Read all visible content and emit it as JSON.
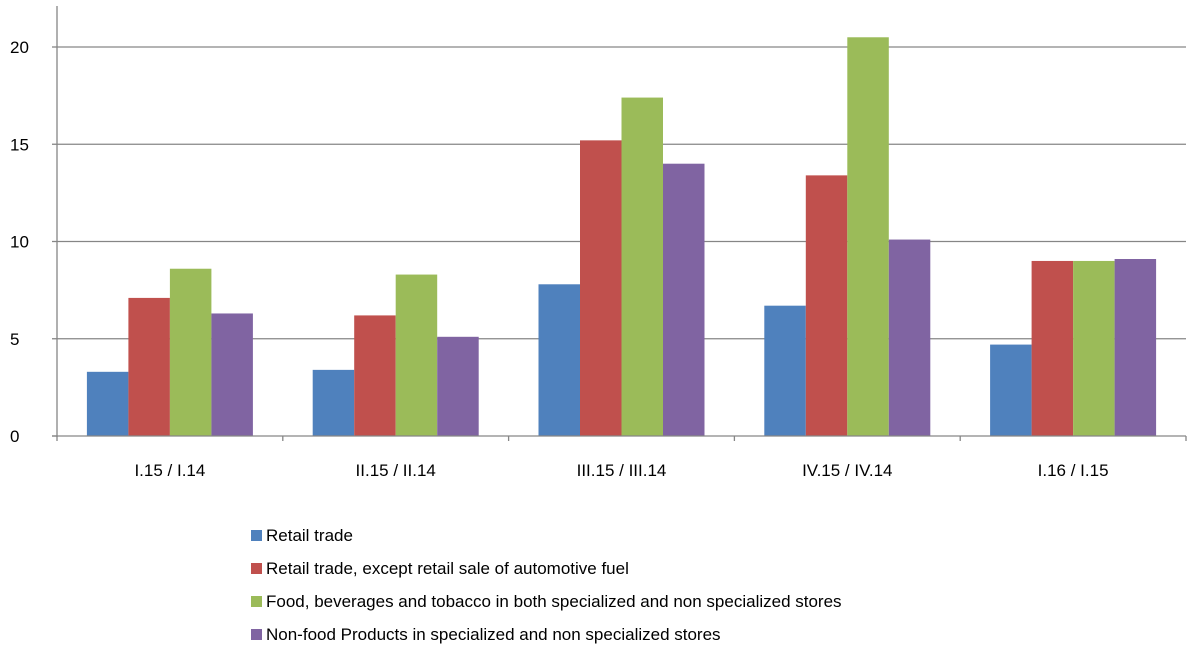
{
  "chart_data": {
    "type": "bar",
    "categories": [
      "I.15 / I.14",
      "II.15 / II.14",
      "III.15 / III.14",
      "IV.15 / IV.14",
      "I.16 / I.15"
    ],
    "series": [
      {
        "name": "Retail trade",
        "color": "#4F81BD",
        "values": [
          3.3,
          3.4,
          7.8,
          6.7,
          4.7
        ]
      },
      {
        "name": "Retail trade, except retail sale of automotive fuel",
        "color": "#C0504D",
        "values": [
          7.1,
          6.2,
          15.2,
          13.4,
          9.0
        ]
      },
      {
        "name": "Food, beverages and tobacco in both specialized and non specialized stores",
        "color": "#9BBB59",
        "values": [
          8.6,
          8.3,
          17.4,
          20.5,
          9.0
        ]
      },
      {
        "name": "Non-food Products in specialized and non specialized stores",
        "color": "#8064A2",
        "values": [
          6.3,
          5.1,
          14.0,
          10.1,
          9.1
        ]
      }
    ],
    "yticks": [
      "0",
      "5",
      "10",
      "15",
      "20"
    ],
    "ylim": [
      0,
      20
    ],
    "grid": true,
    "legend_position": "bottom"
  }
}
